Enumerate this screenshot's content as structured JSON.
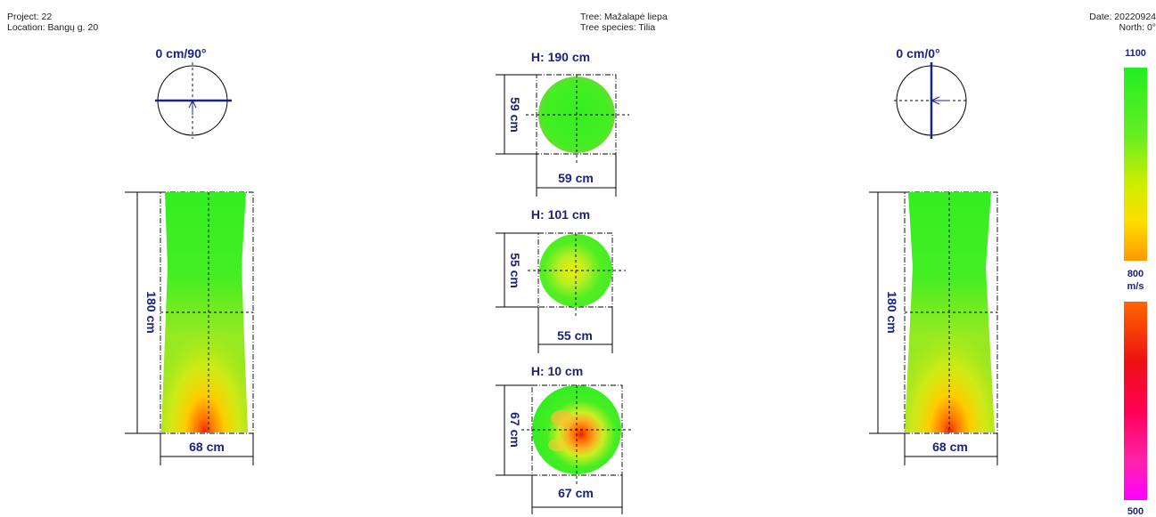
{
  "header": {
    "project": "Project: 22",
    "location": "Location: Bangų g. 20",
    "tree": "Tree: Mažalapė liepa",
    "species": "Tree species: Tilia",
    "date": "Date: 20220924",
    "north": "North: 0°"
  },
  "left_view": {
    "angle_label": "0 cm/90°",
    "height_label": "180 cm",
    "width_label": "68 cm"
  },
  "right_view": {
    "angle_label": "0 cm/0°",
    "height_label": "180 cm",
    "width_label": "68 cm"
  },
  "sections": [
    {
      "title": "H: 190 cm",
      "width_label": "59 cm",
      "height_label": "59 cm"
    },
    {
      "title": "H: 101 cm",
      "width_label": "55 cm",
      "height_label": "55 cm"
    },
    {
      "title": "H: 10 cm",
      "width_label": "67 cm",
      "height_label": "67 cm"
    }
  ],
  "legend": {
    "max": "1100",
    "mid": "800",
    "unit": "m/s",
    "min": "500",
    "colors": {
      "top": "#22ee22",
      "upper_mid": "#ccee00",
      "upper_low": "#ffee00",
      "upper_bottom": "#ff9900",
      "lower_top": "#ff6600",
      "lower_red": "#ee1111",
      "lower_pink": "#ff22aa",
      "lower_bottom": "#ff00ff"
    }
  }
}
